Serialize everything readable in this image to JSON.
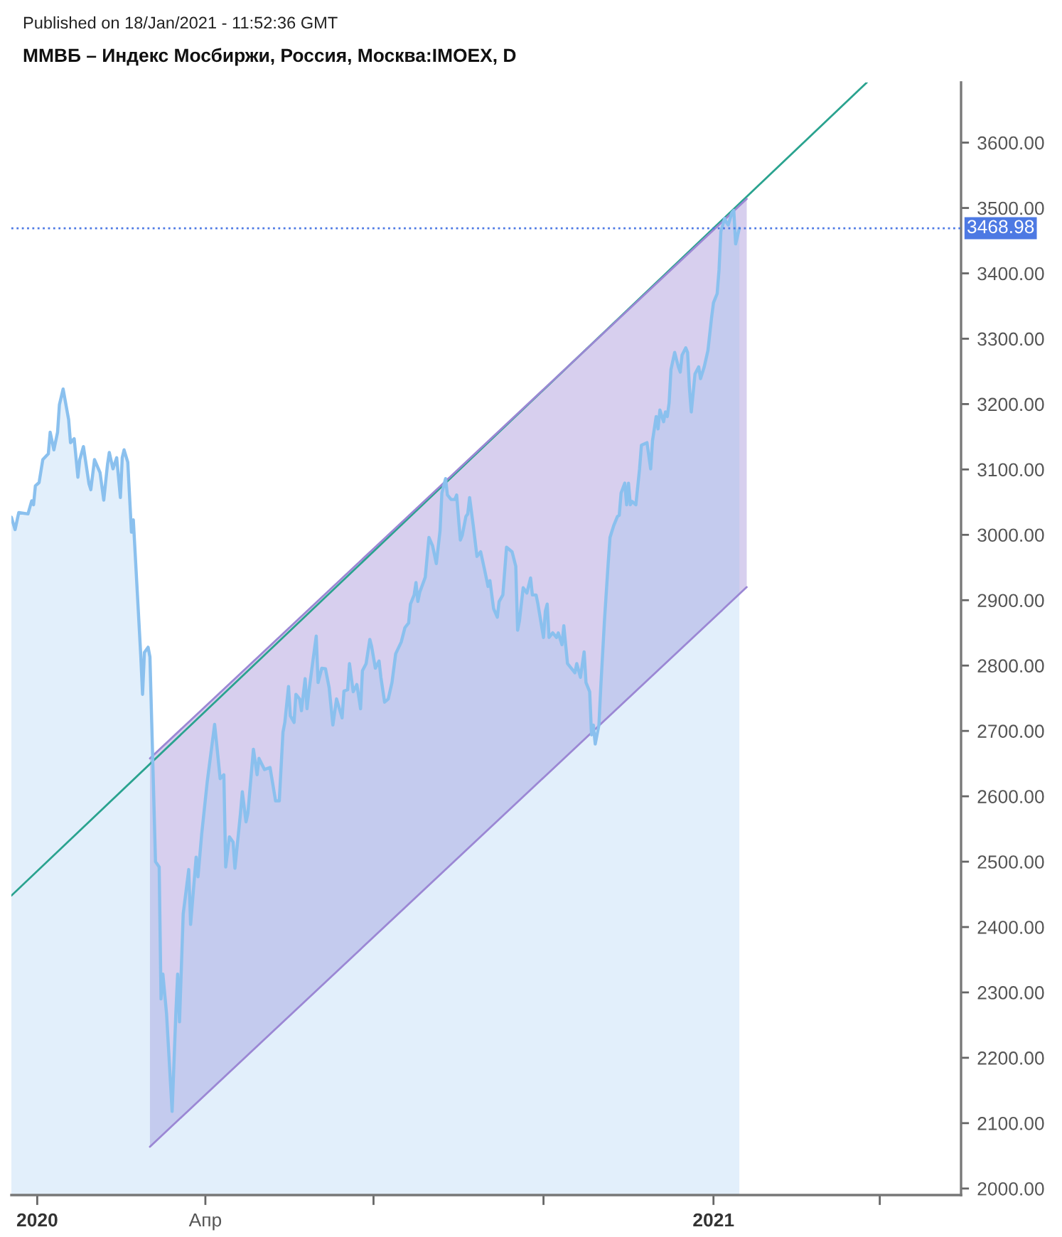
{
  "chart_data": {
    "type": "area",
    "title": "ММВБ – Индекс Мосбиржи, Россия, Москва:IMOEX, D",
    "annotations": [
      "Published on 18/Jan/2021 - 11:52:36 GMT"
    ],
    "xlim": [
      "2019-12-18",
      "2021-05-15"
    ],
    "xticks": [
      {
        "value": "2020-01-01",
        "label": "2020"
      },
      {
        "value": "2020-04-01",
        "label": "Апр"
      },
      {
        "value": "2020-07-01",
        "label": null
      },
      {
        "value": "2020-10-01",
        "label": null
      },
      {
        "value": "2021-01-01",
        "label": "2021"
      },
      {
        "value": "2021-04-01",
        "label": null
      }
    ],
    "ylim": [
      1990,
      3692
    ],
    "yticks": [
      {
        "value": 2000,
        "label": "2000.00"
      },
      {
        "value": 2100,
        "label": "2100.00"
      },
      {
        "value": 2200,
        "label": "2200.00"
      },
      {
        "value": 2300,
        "label": "2300.00"
      },
      {
        "value": 2400,
        "label": "2400.00"
      },
      {
        "value": 2500,
        "label": "2500.00"
      },
      {
        "value": 2600,
        "label": "2600.00"
      },
      {
        "value": 2700,
        "label": "2700.00"
      },
      {
        "value": 2800,
        "label": "2800.00"
      },
      {
        "value": 2900,
        "label": "2900.00"
      },
      {
        "value": 3000,
        "label": "3000.00"
      },
      {
        "value": 3100,
        "label": "3100.00"
      },
      {
        "value": 3200,
        "label": "3200.00"
      },
      {
        "value": 3300,
        "label": "3300.00"
      },
      {
        "value": 3400,
        "label": "3400.00"
      },
      {
        "value": 3500,
        "label": "3500.00"
      },
      {
        "value": 3600,
        "label": "3600.00"
      }
    ],
    "ref_lines": [
      {
        "axis": "y",
        "value": 3468.98,
        "label": "3468.98",
        "color": "#4d79e3",
        "line_style": "dotted"
      }
    ],
    "series": [
      {
        "color": "#8ac0ee",
        "x": [
          "2019-12-18",
          "2019-12-20",
          "2019-12-22",
          "2019-12-27",
          "2019-12-29",
          "2019-12-30",
          "2019-12-31",
          "2020-01-02",
          "2020-01-04",
          "2020-01-07",
          "2020-01-08",
          "2020-01-10",
          "2020-01-12",
          "2020-01-13",
          "2020-01-15",
          "2020-01-18",
          "2020-01-19",
          "2020-01-21",
          "2020-01-23",
          "2020-01-24",
          "2020-01-26",
          "2020-01-29",
          "2020-01-30",
          "2020-02-01",
          "2020-02-04",
          "2020-02-06",
          "2020-02-08",
          "2020-02-09",
          "2020-02-11",
          "2020-02-13",
          "2020-02-15",
          "2020-02-16",
          "2020-02-17",
          "2020-02-19",
          "2020-02-21",
          "2020-02-22",
          "2020-02-26",
          "2020-02-27",
          "2020-02-28",
          "2020-03-01",
          "2020-03-02",
          "2020-03-05",
          "2020-03-07",
          "2020-03-08",
          "2020-03-09",
          "2020-03-11",
          "2020-03-14",
          "2020-03-16",
          "2020-03-17",
          "2020-03-18",
          "2020-03-20",
          "2020-03-23",
          "2020-03-24",
          "2020-03-27",
          "2020-03-28",
          "2020-03-30",
          "2020-04-02",
          "2020-04-06",
          "2020-04-07",
          "2020-04-09",
          "2020-04-11",
          "2020-04-12",
          "2020-04-14",
          "2020-04-16",
          "2020-04-17",
          "2020-04-20",
          "2020-04-21",
          "2020-04-23",
          "2020-04-24",
          "2020-04-27",
          "2020-04-29",
          "2020-04-30",
          "2020-05-03",
          "2020-05-06",
          "2020-05-09",
          "2020-05-11",
          "2020-05-13",
          "2020-05-14",
          "2020-05-16",
          "2020-05-17",
          "2020-05-19",
          "2020-05-20",
          "2020-05-22",
          "2020-05-23",
          "2020-05-25",
          "2020-05-26",
          "2020-05-27",
          "2020-05-29",
          "2020-05-31",
          "2020-06-01",
          "2020-06-03",
          "2020-06-05",
          "2020-06-07",
          "2020-06-09",
          "2020-06-11",
          "2020-06-14",
          "2020-06-15",
          "2020-06-17",
          "2020-06-18",
          "2020-06-20",
          "2020-06-22",
          "2020-06-24",
          "2020-06-25",
          "2020-06-27",
          "2020-06-29",
          "2020-06-30",
          "2020-07-02",
          "2020-07-04",
          "2020-07-05",
          "2020-07-07",
          "2020-07-09",
          "2020-07-11",
          "2020-07-13",
          "2020-07-16",
          "2020-07-18",
          "2020-07-20",
          "2020-07-21",
          "2020-07-23",
          "2020-07-24",
          "2020-07-25",
          "2020-07-26",
          "2020-07-29",
          "2020-07-31",
          "2020-08-02",
          "2020-08-04",
          "2020-08-06",
          "2020-08-07",
          "2020-08-09",
          "2020-08-10",
          "2020-08-12",
          "2020-08-14",
          "2020-08-15",
          "2020-08-17",
          "2020-08-18",
          "2020-08-20",
          "2020-08-21",
          "2020-08-22",
          "2020-08-24",
          "2020-08-26",
          "2020-08-28",
          "2020-08-30",
          "2020-09-01",
          "2020-09-02",
          "2020-09-04",
          "2020-09-06",
          "2020-09-07",
          "2020-09-09",
          "2020-09-11",
          "2020-09-14",
          "2020-09-16",
          "2020-09-17",
          "2020-09-18",
          "2020-09-20",
          "2020-09-22",
          "2020-09-24",
          "2020-09-25",
          "2020-09-27",
          "2020-09-28",
          "2020-10-01",
          "2020-10-02",
          "2020-10-03",
          "2020-10-04",
          "2020-10-06",
          "2020-10-08",
          "2020-10-09",
          "2020-10-11",
          "2020-10-12",
          "2020-10-14",
          "2020-10-16",
          "2020-10-18",
          "2020-10-19",
          "2020-10-21",
          "2020-10-23",
          "2020-10-24",
          "2020-10-26",
          "2020-10-27",
          "2020-10-28",
          "2020-10-29",
          "2020-10-31",
          "2020-11-01",
          "2020-11-03",
          "2020-11-05",
          "2020-11-06",
          "2020-11-08",
          "2020-11-10",
          "2020-11-11",
          "2020-11-12",
          "2020-11-14",
          "2020-11-15",
          "2020-11-16",
          "2020-11-17",
          "2020-11-18",
          "2020-11-20",
          "2020-11-22",
          "2020-11-23",
          "2020-11-26",
          "2020-11-28",
          "2020-11-29",
          "2020-12-01",
          "2020-12-02",
          "2020-12-03",
          "2020-12-05",
          "2020-12-06",
          "2020-12-07",
          "2020-12-08",
          "2020-12-09",
          "2020-12-11",
          "2020-12-13",
          "2020-12-14",
          "2020-12-15",
          "2020-12-17",
          "2020-12-18",
          "2020-12-19",
          "2020-12-20",
          "2020-12-22",
          "2020-12-24",
          "2020-12-25",
          "2020-12-27",
          "2020-12-29",
          "2020-12-31",
          "2021-01-01",
          "2021-01-02",
          "2021-01-03",
          "2021-01-04",
          "2021-01-05",
          "2021-01-07",
          "2021-01-08",
          "2021-01-09",
          "2021-01-11",
          "2021-01-12",
          "2021-01-13",
          "2021-01-15"
        ],
        "values": [
          3027,
          3008,
          3034,
          3032,
          3052,
          3046,
          3075,
          3080,
          3115,
          3124,
          3157,
          3130,
          3157,
          3199,
          3223,
          3176,
          3141,
          3147,
          3088,
          3115,
          3135,
          3078,
          3069,
          3115,
          3095,
          3053,
          3107,
          3126,
          3101,
          3118,
          3057,
          3118,
          3130,
          3111,
          3004,
          3023,
          2817,
          2756,
          2820,
          2828,
          2813,
          2500,
          2492,
          2290,
          2328,
          2267,
          2118,
          2267,
          2328,
          2255,
          2420,
          2488,
          2404,
          2507,
          2477,
          2542,
          2622,
          2710,
          2683,
          2627,
          2633,
          2492,
          2538,
          2530,
          2490,
          2574,
          2607,
          2561,
          2574,
          2672,
          2633,
          2658,
          2641,
          2644,
          2593,
          2593,
          2698,
          2713,
          2768,
          2723,
          2713,
          2756,
          2749,
          2731,
          2780,
          2734,
          2760,
          2803,
          2845,
          2774,
          2796,
          2795,
          2766,
          2709,
          2749,
          2720,
          2761,
          2763,
          2803,
          2760,
          2771,
          2734,
          2792,
          2803,
          2840,
          2829,
          2796,
          2807,
          2782,
          2744,
          2749,
          2774,
          2818,
          2836,
          2858,
          2865,
          2894,
          2908,
          2927,
          2898,
          2912,
          2935,
          2996,
          2983,
          2956,
          3006,
          3064,
          3086,
          3061,
          3054,
          3054,
          3061,
          2992,
          2999,
          3028,
          3032,
          3057,
          3014,
          2967,
          2974,
          2948,
          2921,
          2930,
          2887,
          2874,
          2898,
          2908,
          2981,
          2974,
          2952,
          2854,
          2869,
          2919,
          2911,
          2934,
          2908,
          2908,
          2894,
          2843,
          2883,
          2894,
          2843,
          2850,
          2843,
          2850,
          2832,
          2861,
          2803,
          2796,
          2789,
          2803,
          2782,
          2821,
          2774,
          2760,
          2694,
          2709,
          2680,
          2709,
          2767,
          2869,
          2956,
          2996,
          3014,
          3028,
          3030,
          3064,
          3079,
          3046,
          3079,
          3046,
          3051,
          3046,
          3101,
          3137,
          3141,
          3101,
          3144,
          3181,
          3162,
          3191,
          3173,
          3188,
          3181,
          3202,
          3253,
          3279,
          3257,
          3249,
          3275,
          3286,
          3279,
          3224,
          3188,
          3246,
          3257,
          3239,
          3257,
          3282,
          3333,
          3355,
          3362,
          3369,
          3405,
          3464,
          3484,
          3478,
          3474,
          3493,
          3496,
          3445,
          3469
        ]
      },
      {
        "type": "line",
        "color": "#2aa38f",
        "x": [
          "2019-12-18",
          "2021-03-25"
        ],
        "values": [
          2448,
          3692
        ]
      },
      {
        "type": "line",
        "color": "#9b87d4",
        "x": [
          "2020-03-02",
          "2021-01-19"
        ],
        "values": [
          2658,
          3514
        ],
        "lower": [
          2064,
          2920
        ],
        "upper": [
          2658,
          3514
        ]
      },
      {
        "type": "line",
        "color": "#9b87d4",
        "x": [
          "2020-03-02",
          "2021-01-19"
        ],
        "values": [
          2064,
          2920
        ]
      }
    ]
  }
}
